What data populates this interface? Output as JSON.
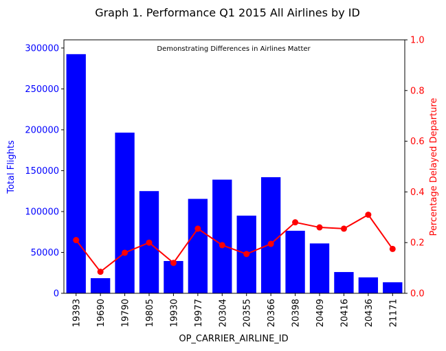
{
  "chart_data": {
    "type": "bar",
    "title": "Graph 1. Performance Q1 2015 All Airlines by ID",
    "annotation": "Demonstrating Differences in Airlines Matter",
    "xlabel": "OP_CARRIER_AIRLINE_ID",
    "ylabel": "Total Flights",
    "y2label": "Percentage Delayed Departure",
    "ylim": [
      0,
      310000
    ],
    "y2lim": [
      0,
      1.0
    ],
    "yticks": [
      0,
      50000,
      100000,
      150000,
      200000,
      250000,
      300000
    ],
    "y2ticks": [
      0.0,
      0.2,
      0.4,
      0.6,
      0.8,
      1.0
    ],
    "y2tick_labels": [
      "0.0",
      "0.2",
      "0.4",
      "0.6",
      "0.8",
      "1.0"
    ],
    "grid": false,
    "categories": [
      "19393",
      "19690",
      "19790",
      "19805",
      "19930",
      "19977",
      "20304",
      "20355",
      "20366",
      "20398",
      "20409",
      "20416",
      "20436",
      "21171"
    ],
    "series": [
      {
        "type": "bar",
        "axis": "left",
        "color": "#0000ff",
        "values": [
          292500,
          18500,
          196500,
          125000,
          39500,
          115500,
          139000,
          95000,
          142000,
          76500,
          61000,
          26000,
          19500,
          13500
        ]
      },
      {
        "type": "line",
        "axis": "right",
        "color": "#ff0000",
        "values": [
          0.21,
          0.085,
          0.16,
          0.2,
          0.12,
          0.255,
          0.19,
          0.155,
          0.195,
          0.28,
          0.26,
          0.255,
          0.31,
          0.175
        ]
      }
    ],
    "colors": {
      "left_axis": "#0000ff",
      "right_axis": "#ff0000",
      "axis": "#000000"
    }
  }
}
